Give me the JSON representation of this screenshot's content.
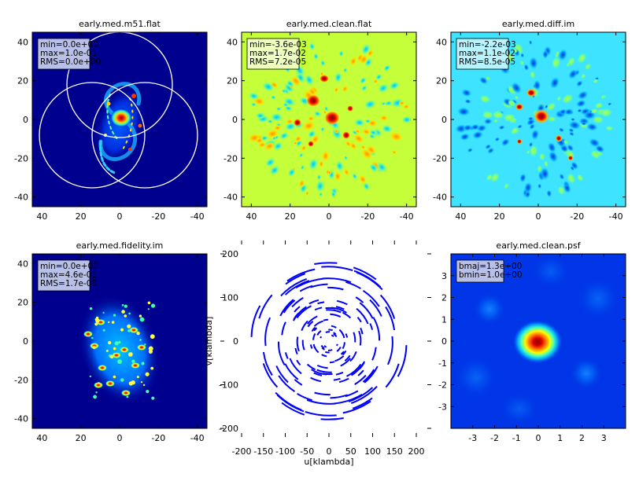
{
  "figure": {
    "panels": [
      {
        "title": "early.med.m51.flat",
        "stats": [
          "min=0.0e+00",
          "max=1.0e-01",
          "RMS=0.0e+00"
        ],
        "xticks": [
          "40",
          "20",
          "0",
          "-20",
          "-40"
        ],
        "yticks": [
          "40",
          "20",
          "0",
          "-20",
          "-40"
        ]
      },
      {
        "title": "early.med.clean.flat",
        "stats": [
          "min=-3.6e-03",
          "max=1.7e-02",
          "RMS=7.2e-05"
        ],
        "xticks": [
          "40",
          "20",
          "0",
          "-20",
          "-40"
        ],
        "yticks": [
          "40",
          "20",
          "0",
          "-20",
          "-40"
        ]
      },
      {
        "title": "early.med.diff.im",
        "stats": [
          "min=-2.2e-03",
          "max=1.1e-02",
          "RMS=8.5e-05"
        ],
        "xticks": [
          "40",
          "20",
          "0",
          "-20",
          "-40"
        ],
        "yticks": [
          "40",
          "20",
          "0",
          "-20",
          "-40"
        ]
      },
      {
        "title": "early.med.fidelity.im",
        "stats": [
          "min=0.0e+00",
          "max=4.6e-01",
          "RMS=1.7e-08"
        ],
        "xticks": [
          "40",
          "20",
          "0",
          "-20",
          "-40"
        ],
        "yticks": [
          "40",
          "20",
          "0",
          "-20",
          "-40"
        ]
      },
      {
        "title": "",
        "stats": [],
        "xlabel": "u[klambda]",
        "ylabel": "v[klambda]",
        "xticks": [
          "-200",
          "-150",
          "-100",
          "-50",
          "0",
          "50",
          "100",
          "150",
          "200"
        ],
        "yticks": [
          "200",
          "100",
          "0",
          "-100",
          "-200"
        ]
      },
      {
        "title": "early.med.clean.psf",
        "stats": [
          "bmaj=1.3e+00",
          "bmin=1.0e+00"
        ],
        "xticks": [
          "-3",
          "-2",
          "-1",
          "0",
          "1",
          "2",
          "3"
        ],
        "yticks": [
          "3",
          "2",
          "1",
          "0",
          "-1",
          "-2",
          "-3"
        ]
      }
    ]
  },
  "chart_data": [
    {
      "type": "heatmap",
      "title": "early.med.m51.flat",
      "xlim": [
        45,
        -45
      ],
      "ylim": [
        -45,
        45
      ],
      "stats": {
        "min": 0.0,
        "max": 0.1,
        "RMS": 0.0
      },
      "overlay": "three circular primary-beam outlines",
      "colormap": "jet"
    },
    {
      "type": "heatmap",
      "title": "early.med.clean.flat",
      "xlim": [
        45,
        -45
      ],
      "ylim": [
        -45,
        45
      ],
      "stats": {
        "min": -0.0036,
        "max": 0.017,
        "RMS": 7.2e-05
      },
      "colormap": "jet"
    },
    {
      "type": "heatmap",
      "title": "early.med.diff.im",
      "xlim": [
        45,
        -45
      ],
      "ylim": [
        -45,
        45
      ],
      "stats": {
        "min": -0.0022,
        "max": 0.011,
        "RMS": 8.5e-05
      },
      "colormap": "jet"
    },
    {
      "type": "heatmap",
      "title": "early.med.fidelity.im",
      "xlim": [
        45,
        -45
      ],
      "ylim": [
        -45,
        45
      ],
      "stats": {
        "min": 0.0,
        "max": 0.46,
        "RMS": 1.7e-08
      },
      "colormap": "jet"
    },
    {
      "type": "scatter",
      "title": "",
      "xlabel": "u[klambda]",
      "ylabel": "v[klambda]",
      "xlim": [
        -200,
        200
      ],
      "ylim": [
        -200,
        200
      ],
      "description": "uv-coverage arcs, point-symmetric about origin",
      "color": "#0000ff"
    },
    {
      "type": "heatmap",
      "title": "early.med.clean.psf",
      "xlim": [
        -4,
        4
      ],
      "ylim": [
        -4,
        4
      ],
      "stats": {
        "bmaj": 1.3,
        "bmin": 1.0
      },
      "colormap": "jet"
    }
  ]
}
